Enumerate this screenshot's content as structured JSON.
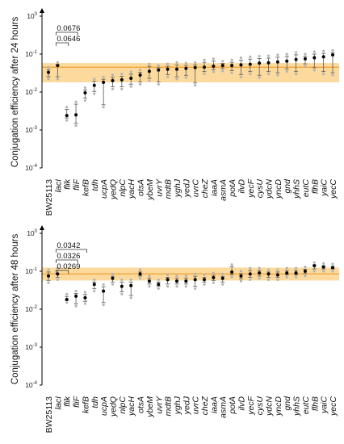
{
  "chart_data": [
    {
      "type": "scatter",
      "ylabel": "Conjugation efficiency after 24 hours",
      "yscale": "log",
      "ylim": [
        0.0001,
        1
      ],
      "yticks": [
        {
          "value": 1,
          "base": "10",
          "exp": "0"
        },
        {
          "value": 0.1,
          "base": "10",
          "exp": "-1"
        },
        {
          "value": 0.01,
          "base": "10",
          "exp": "-2"
        },
        {
          "value": 0.001,
          "base": "10",
          "exp": "-3"
        },
        {
          "value": 0.0001,
          "base": "10",
          "exp": "-4"
        }
      ],
      "categories": [
        "BW25113",
        "lacI",
        "flik",
        "fliF",
        "kefB",
        "tdh",
        "ucpA",
        "yedQ",
        "nlpC",
        "yacH",
        "otsA",
        "ybeM",
        "uvrY",
        "mdtB",
        "yghJ",
        "yedJ",
        "uvrC",
        "cheZ",
        "iaaA",
        "asmA",
        "potA",
        "ilvD",
        "yecF",
        "cysU",
        "ydcN",
        "yncD",
        "gnd",
        "yhhS",
        "eutC",
        "flhB",
        "yaiC",
        "yecC"
      ],
      "reference_band": {
        "low": 0.018,
        "high": 0.058,
        "line": 0.045,
        "color": "#fbd38d",
        "line_color": "#f0a63a"
      },
      "series": [
        {
          "role": "mean",
          "color": "#000000",
          "values": [
            0.033,
            0.05,
            0.0024,
            0.0025,
            0.0095,
            0.015,
            0.018,
            0.02,
            0.021,
            0.023,
            0.028,
            0.035,
            0.038,
            0.04,
            0.04,
            0.042,
            0.044,
            0.045,
            0.048,
            0.05,
            0.05,
            0.052,
            0.054,
            0.058,
            0.059,
            0.062,
            0.065,
            0.072,
            0.075,
            0.08,
            0.085,
            0.095
          ]
        },
        {
          "role": "replicates",
          "color": "#b3b3b3",
          "values": [
            [
              0.045,
              0.022
            ],
            [
              0.06,
              0.022
            ],
            [
              0.004,
              0.0018
            ],
            [
              0.0055,
              0.0013
            ],
            [
              0.013,
              0.006
            ],
            [
              0.022,
              0.009
            ],
            [
              0.025,
              0.004
            ],
            [
              0.028,
              0.012
            ],
            [
              0.03,
              0.012
            ],
            [
              0.034,
              0.014
            ],
            [
              0.038,
              0.016
            ],
            [
              0.055,
              0.02
            ],
            [
              0.05,
              0.016
            ],
            [
              0.055,
              0.025
            ],
            [
              0.06,
              0.022
            ],
            [
              0.058,
              0.024
            ],
            [
              0.06,
              0.015
            ],
            [
              0.07,
              0.03
            ],
            [
              0.075,
              0.034
            ],
            [
              0.065,
              0.036
            ],
            [
              0.07,
              0.032
            ],
            [
              0.08,
              0.025
            ],
            [
              0.085,
              0.03
            ],
            [
              0.088,
              0.024
            ],
            [
              0.09,
              0.03
            ],
            [
              0.095,
              0.028
            ],
            [
              0.1,
              0.035
            ],
            [
              0.11,
              0.03
            ],
            [
              0.1,
              0.048
            ],
            [
              0.115,
              0.038
            ],
            [
              0.12,
              0.03
            ],
            [
              0.125,
              0.028
            ]
          ]
        }
      ],
      "annotations": [
        {
          "text": "0.0676",
          "from": "lacI",
          "to": "fliF"
        },
        {
          "text": "0.0646",
          "from": "lacI",
          "to": "flik"
        }
      ]
    },
    {
      "type": "scatter",
      "ylabel": "Conjugation efficiency after 48 hours",
      "yscale": "log",
      "ylim": [
        0.0001,
        1
      ],
      "yticks": [
        {
          "value": 1,
          "base": "10",
          "exp": "0"
        },
        {
          "value": 0.1,
          "base": "10",
          "exp": "-1"
        },
        {
          "value": 0.01,
          "base": "10",
          "exp": "-2"
        },
        {
          "value": 0.001,
          "base": "10",
          "exp": "-3"
        },
        {
          "value": 0.0001,
          "base": "10",
          "exp": "-4"
        }
      ],
      "categories": [
        "BW25113",
        "lacI",
        "flik",
        "fliF",
        "kefB",
        "tdh",
        "ucpA",
        "yedQ",
        "nlpC",
        "yacH",
        "otsA",
        "ybeM",
        "uvrY",
        "mdtB",
        "yghJ",
        "yedJ",
        "uvrC",
        "cheZ",
        "iaaA",
        "asmA",
        "potA",
        "ilvD",
        "yecF",
        "cysU",
        "ydcN",
        "yncD",
        "gnd",
        "yhhS",
        "eutC",
        "flhB",
        "yaiC",
        "yecC"
      ],
      "reference_band": {
        "low": 0.057,
        "high": 0.125,
        "line": 0.085,
        "color": "#fbd38d",
        "line_color": "#f0a63a"
      },
      "series": [
        {
          "role": "mean",
          "color": "#000000",
          "values": [
            0.075,
            0.085,
            0.018,
            0.022,
            0.02,
            0.045,
            0.03,
            0.065,
            0.04,
            0.042,
            0.085,
            0.055,
            0.045,
            0.06,
            0.055,
            0.055,
            0.06,
            0.06,
            0.068,
            0.065,
            0.095,
            0.075,
            0.085,
            0.09,
            0.085,
            0.08,
            0.09,
            0.09,
            0.1,
            0.14,
            0.13,
            0.125
          ]
        },
        {
          "role": "replicates",
          "color": "#b3b3b3",
          "values": [
            [
              0.11,
              0.05
            ],
            [
              0.12,
              0.06
            ],
            [
              0.025,
              0.015
            ],
            [
              0.03,
              0.012
            ],
            [
              0.028,
              0.014
            ],
            [
              0.06,
              0.03
            ],
            [
              0.045,
              0.013
            ],
            [
              0.085,
              0.045
            ],
            [
              0.06,
              0.025
            ],
            [
              0.06,
              0.02
            ],
            [
              0.11,
              0.065
            ],
            [
              0.075,
              0.04
            ],
            [
              0.06,
              0.035
            ],
            [
              0.08,
              0.04
            ],
            [
              0.075,
              0.04
            ],
            [
              0.075,
              0.04
            ],
            [
              0.085,
              0.035
            ],
            [
              0.08,
              0.045
            ],
            [
              0.09,
              0.05
            ],
            [
              0.085,
              0.045
            ],
            [
              0.15,
              0.07
            ],
            [
              0.1,
              0.055
            ],
            [
              0.12,
              0.06
            ],
            [
              0.12,
              0.065
            ],
            [
              0.11,
              0.06
            ],
            [
              0.11,
              0.06
            ],
            [
              0.12,
              0.07
            ],
            [
              0.12,
              0.07
            ],
            [
              0.13,
              0.075
            ],
            [
              0.17,
              0.1
            ],
            [
              0.16,
              0.1
            ],
            [
              0.155,
              0.1
            ]
          ]
        }
      ],
      "annotations": [
        {
          "text": "0.0342",
          "from": "lacI",
          "to": "kefB"
        },
        {
          "text": "0.0326",
          "from": "lacI",
          "to": "fliF"
        },
        {
          "text": "0.0269",
          "from": "lacI",
          "to": "flik"
        }
      ]
    }
  ]
}
